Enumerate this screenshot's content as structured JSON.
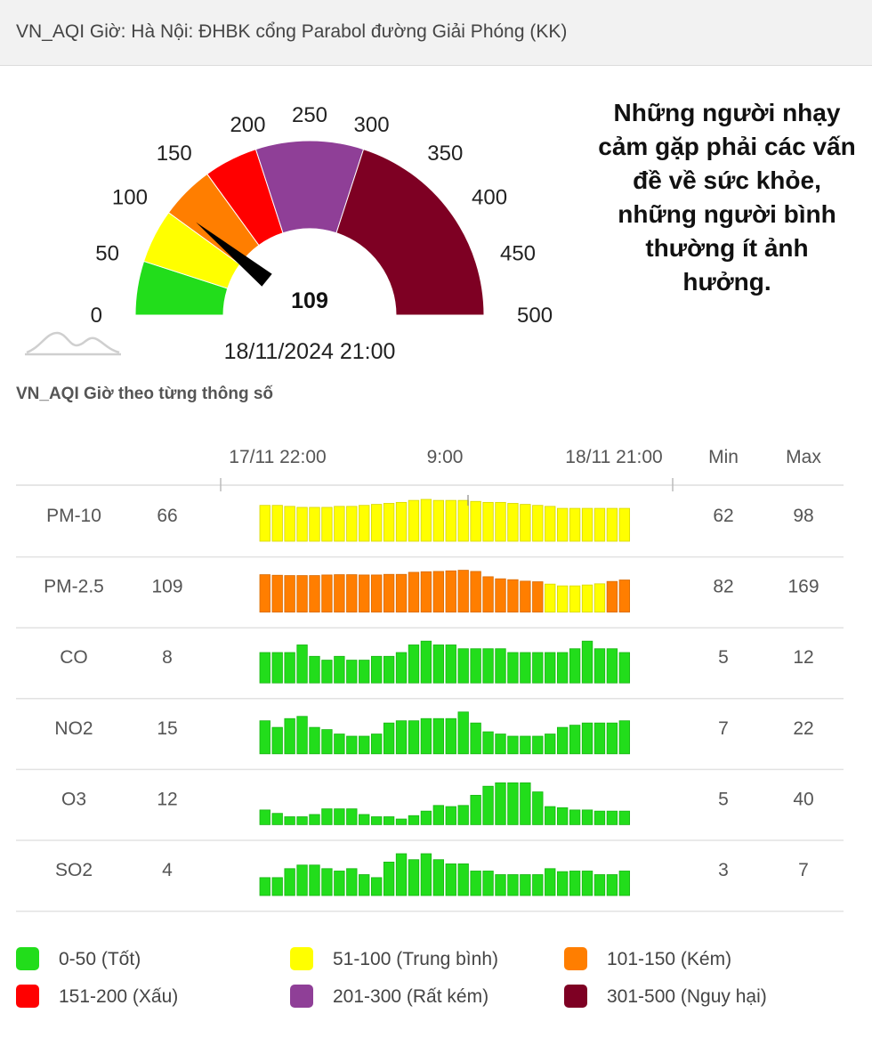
{
  "header": {
    "title": "VN_AQI Giờ: Hà Nội: ĐHBK cổng Parabol đường Giải Phóng (KK)"
  },
  "gauge": {
    "value": 109,
    "value_label": "109",
    "max": 500,
    "datetime": "18/11/2024 21:00",
    "ticks": [
      "0",
      "50",
      "100",
      "150",
      "200",
      "250",
      "300",
      "350",
      "400",
      "450",
      "500"
    ],
    "bands": [
      {
        "from": 0,
        "to": 50,
        "color": "#22dd1b"
      },
      {
        "from": 50,
        "to": 100,
        "color": "#ffff00"
      },
      {
        "from": 100,
        "to": 150,
        "color": "#ff7e00"
      },
      {
        "from": 150,
        "to": 200,
        "color": "#ff0000"
      },
      {
        "from": 200,
        "to": 300,
        "color": "#8f3f97"
      },
      {
        "from": 300,
        "to": 500,
        "color": "#7e0023"
      }
    ]
  },
  "status_message": "Những người nhạy cảm gặp phải các vấn đề về sức khỏe, những người bình thường ít ảnh hưởng.",
  "section_title": "VN_AQI Giờ theo từng thông số",
  "chart_data": {
    "type": "bar",
    "time_labels": [
      "17/11 22:00",
      "9:00",
      "18/11 21:00"
    ],
    "column_headers": {
      "min": "Min",
      "max": "Max"
    },
    "series": [
      {
        "name": "PM-10",
        "current": "66",
        "min": "62",
        "max": "98",
        "values": [
          72,
          72,
          70,
          68,
          68,
          68,
          70,
          70,
          72,
          74,
          76,
          78,
          82,
          84,
          82,
          82,
          82,
          80,
          78,
          78,
          76,
          74,
          72,
          70,
          66,
          66,
          66,
          66,
          66,
          66
        ]
      },
      {
        "name": "PM-2.5",
        "current": "109",
        "min": "82",
        "max": "169",
        "values": [
          127,
          125,
          124,
          124,
          124,
          126,
          127,
          127,
          126,
          126,
          128,
          128,
          135,
          137,
          138,
          140,
          142,
          138,
          120,
          113,
          110,
          105,
          103,
          95,
          89,
          89,
          92,
          96,
          104,
          109
        ]
      },
      {
        "name": "CO",
        "current": "8",
        "min": "5",
        "max": "12",
        "values": [
          8,
          8,
          8,
          10,
          7,
          6,
          7,
          6,
          6,
          7,
          7,
          8,
          10,
          11,
          10,
          10,
          9,
          9,
          9,
          9,
          8,
          8,
          8,
          8,
          8,
          9,
          11,
          9,
          9,
          8
        ]
      },
      {
        "name": "NO2",
        "current": "15",
        "min": "7",
        "max": "22",
        "values": [
          15,
          12,
          16,
          17,
          12,
          11,
          9,
          8,
          8,
          9,
          14,
          15,
          15,
          16,
          16,
          16,
          19,
          14,
          10,
          9,
          8,
          8,
          8,
          9,
          12,
          13,
          14,
          14,
          14,
          15
        ]
      },
      {
        "name": "O3",
        "current": "12",
        "min": "5",
        "max": "40",
        "values": [
          13,
          10,
          7,
          7,
          9,
          14,
          14,
          14,
          9,
          7,
          7,
          5,
          8,
          12,
          17,
          16,
          17,
          26,
          34,
          37,
          37,
          37,
          29,
          16,
          15,
          13,
          13,
          12,
          12,
          12
        ]
      },
      {
        "name": "SO2",
        "current": "4",
        "min": "3",
        "max": "7",
        "values": [
          3.0,
          3.0,
          4.5,
          5.1,
          5.1,
          4.5,
          4.1,
          4.5,
          3.5,
          3.0,
          5.6,
          7.0,
          6.0,
          7.0,
          6.0,
          5.3,
          5.3,
          4.1,
          4.1,
          3.5,
          3.5,
          3.5,
          3.5,
          4.5,
          4.0,
          4.1,
          4.1,
          3.5,
          3.5,
          4.1
        ]
      }
    ]
  },
  "legend": [
    {
      "label": "0-50 (Tốt)",
      "color": "#22dd1b"
    },
    {
      "label": "51-100 (Trung bình)",
      "color": "#ffff00"
    },
    {
      "label": "101-150 (Kém)",
      "color": "#ff7e00"
    },
    {
      "label": "151-200 (Xấu)",
      "color": "#ff0000"
    },
    {
      "label": "201-300 (Rất kém)",
      "color": "#8f3f97"
    },
    {
      "label": "301-500 (Nguy hại)",
      "color": "#7e0023"
    }
  ]
}
